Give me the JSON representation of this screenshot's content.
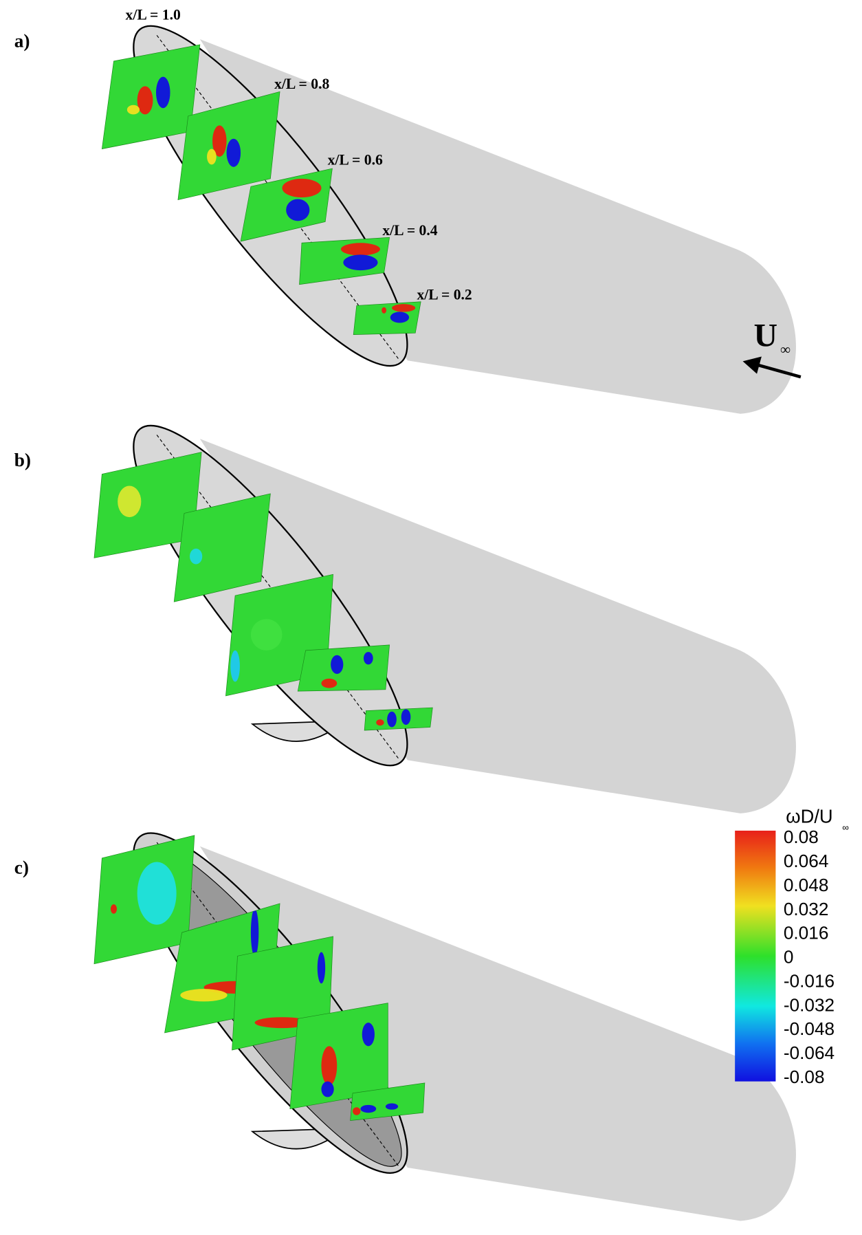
{
  "panels": [
    {
      "label": "a)",
      "stations": [
        "x/L = 1.0",
        "x/L = 0.8",
        "x/L = 0.6",
        "x/L = 0.4",
        "x/L = 0.2"
      ]
    },
    {
      "label": "b)"
    },
    {
      "label": "c)"
    }
  ],
  "freestream": {
    "symbol": "U",
    "subscript": "∞"
  },
  "colorbar": {
    "title": "ωD/U",
    "title_subscript": "∞",
    "ticks": [
      0.08,
      0.064,
      0.048,
      0.032,
      0.016,
      0,
      -0.016,
      -0.032,
      -0.048,
      -0.064,
      -0.08
    ]
  }
}
